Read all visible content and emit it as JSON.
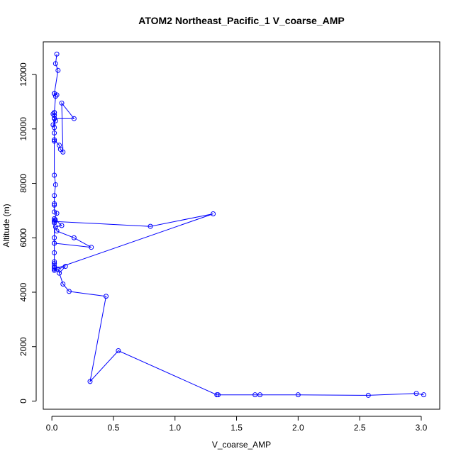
{
  "chart_data": {
    "type": "line",
    "title": "ATOM2 Northeast_Pacific_1 V_coarse_AMP",
    "xlabel": "V_coarse_AMP",
    "ylabel": "Altitude (m)",
    "xlim": [
      -0.07,
      3.15
    ],
    "ylim": [
      -300,
      13200
    ],
    "x_ticks": [
      0.0,
      0.5,
      1.0,
      1.5,
      2.0,
      2.5,
      3.0
    ],
    "x_tick_labels": [
      "0.0",
      "0.5",
      "1.0",
      "1.5",
      "2.0",
      "2.5",
      "3.0"
    ],
    "y_ticks": [
      0,
      2000,
      4000,
      6000,
      8000,
      10000,
      12000
    ],
    "y_tick_labels": [
      "0",
      "2000",
      "4000",
      "6000",
      "8000",
      "10000",
      "12000"
    ],
    "grid": false,
    "legend": "none",
    "line_color": "#0000ff",
    "marker": "open-circle",
    "series": [
      {
        "x": [
          0.04,
          0.03,
          0.05,
          0.02,
          0.04,
          0.02,
          0.03,
          0.02,
          0.01,
          0.02,
          0.02,
          0.03,
          0.01,
          0.02,
          0.02,
          0.02,
          0.06,
          0.07,
          0.09,
          0.08,
          0.18,
          0.02,
          0.02,
          0.02,
          0.02,
          0.03,
          0.02,
          0.02,
          0.02,
          0.02,
          0.04,
          0.02,
          0.02,
          0.02,
          0.02,
          0.02,
          0.02,
          0.02,
          0.02,
          0.02,
          0.02,
          1.31,
          0.8,
          0.02,
          0.03,
          0.08,
          0.03,
          0.04,
          0.18,
          0.32,
          0.02,
          0.02,
          0.02,
          0.02,
          0.11,
          0.06,
          0.05,
          0.09,
          0.14,
          0.44,
          0.31,
          0.54,
          1.34,
          1.35,
          1.65,
          1.69,
          2.0,
          2.57,
          2.96,
          3.02
        ],
        "y": [
          12750,
          12400,
          12150,
          11300,
          11250,
          11300,
          11200,
          10600,
          10550,
          10600,
          10500,
          10300,
          10150,
          10050,
          9850,
          9600,
          9400,
          9250,
          9150,
          10950,
          10380,
          10380,
          10400,
          9550,
          8300,
          7950,
          7550,
          7250,
          7200,
          6950,
          6900,
          6700,
          6650,
          6550,
          6000,
          5800,
          5450,
          5120,
          5050,
          4950,
          4850,
          6880,
          6420,
          6600,
          6650,
          6450,
          6400,
          6250,
          6000,
          5650,
          5800,
          5050,
          4900,
          4800,
          4950,
          4700,
          4850,
          4300,
          4030,
          3850,
          720,
          1850,
          230,
          230,
          230,
          230,
          230,
          210,
          280,
          230
        ]
      }
    ]
  }
}
